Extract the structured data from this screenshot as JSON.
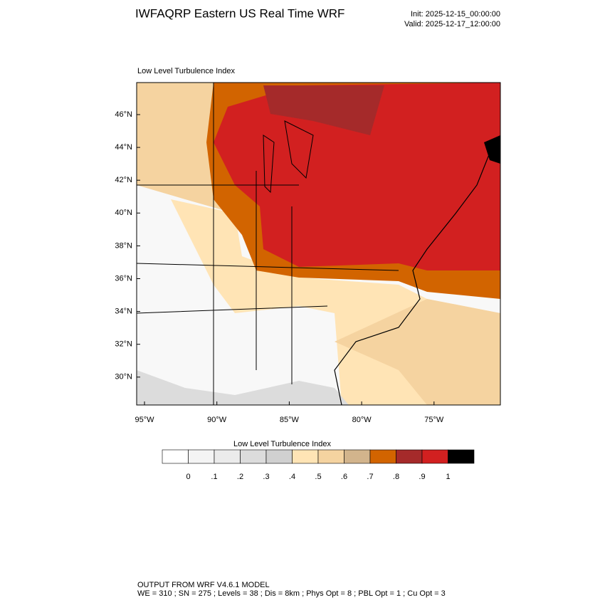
{
  "header": {
    "title": "IWFAQRP Eastern US Real Time WRF",
    "init": "Init: 2025-12-15_00:00:00",
    "valid": "Valid: 2025-12-17_12:00:00"
  },
  "map": {
    "title": "Low Level Turbulence Index",
    "lat_labels": [
      "46°N",
      "44°N",
      "42°N",
      "40°N",
      "38°N",
      "36°N",
      "34°N",
      "32°N",
      "30°N"
    ],
    "lon_labels": [
      "95°W",
      "90°W",
      "85°W",
      "80°W",
      "75°W"
    ]
  },
  "colorbar": {
    "title": "Low Level Turbulence Index",
    "colors": [
      "#ffffff",
      "#f4f4f4",
      "#ebebeb",
      "#dcdcdc",
      "#d0d0d0",
      "#ffe4b5",
      "#f5d3a0",
      "#d2b48c",
      "#d26400",
      "#a52a2a",
      "#d22020",
      "#000000"
    ],
    "labels": [
      "0",
      ".1",
      ".2",
      ".3",
      ".4",
      ".5",
      ".6",
      ".7",
      ".8",
      ".9",
      "1"
    ]
  },
  "footer": {
    "line1": "OUTPUT FROM WRF V4.6.1 MODEL",
    "line2": "WE = 310 ; SN = 275 ; Levels = 38 ; Dis = 8km ; Phys Opt = 8 ; PBL Opt = 1 ; Cu Opt = 3"
  }
}
